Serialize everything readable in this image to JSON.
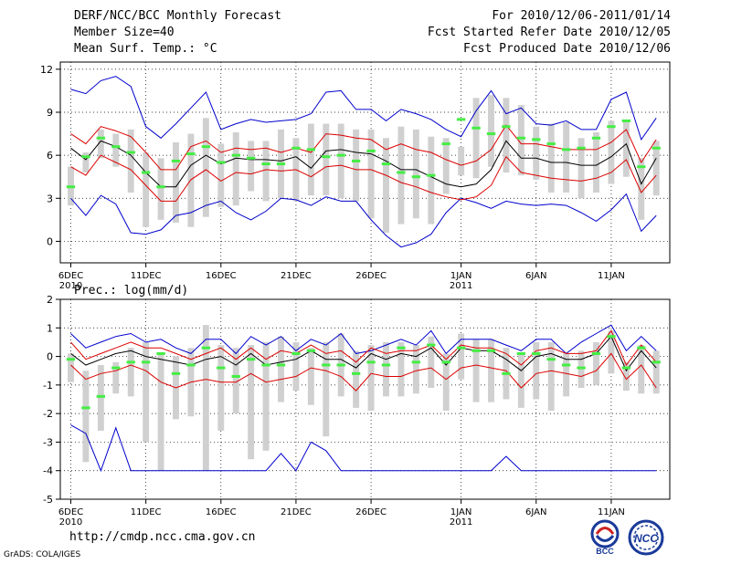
{
  "header": {
    "title": "DERF/NCC/BCC Monthly Forecast",
    "member_size": "Member Size=40",
    "variable": "Mean Surf. Temp.: °C",
    "period": "For 2010/12/06-2011/01/14",
    "started": "Fcst Started Refer Date 2010/12/05",
    "produced": "Fcst Produced Date 2010/12/06"
  },
  "footer": {
    "url": "http://cmdp.ncc.cma.gov.cn",
    "credit": "GrADS: COLA/IGES",
    "logo_bcc": "BCC",
    "logo_ncc": "NCC"
  },
  "colors": {
    "envelope": "#0000cc",
    "spread": "#dd0000",
    "mean": "#000000",
    "box": "#d0d0d0",
    "median": "#44ee44"
  },
  "chart_data": [
    {
      "type": "box",
      "title": "Mean Surf. Temp.: °C",
      "x": [
        1,
        2,
        3,
        4,
        5,
        6,
        7,
        8,
        9,
        10,
        11,
        12,
        13,
        14,
        15,
        16,
        17,
        18,
        19,
        20,
        21,
        22,
        23,
        24,
        25,
        26,
        27,
        28,
        29,
        30,
        31,
        32,
        33,
        34,
        35,
        36,
        37,
        38,
        39,
        40
      ],
      "xticks": [
        {
          "x": 1,
          "label": "6DEC",
          "sub": "2010"
        },
        {
          "x": 6,
          "label": "11DEC",
          "sub": ""
        },
        {
          "x": 11,
          "label": "16DEC",
          "sub": ""
        },
        {
          "x": 16,
          "label": "21DEC",
          "sub": ""
        },
        {
          "x": 21,
          "label": "26DEC",
          "sub": ""
        },
        {
          "x": 27,
          "label": "1JAN",
          "sub": "2011"
        },
        {
          "x": 32,
          "label": "6JAN",
          "sub": ""
        },
        {
          "x": 37,
          "label": "11JAN",
          "sub": ""
        }
      ],
      "yticks": [
        0,
        3,
        6,
        9,
        12
      ],
      "ylim": [
        -1.5,
        12.5
      ],
      "xlim": [
        0.3,
        40.9
      ],
      "max": [
        10.6,
        10.3,
        11.2,
        11.5,
        10.8,
        8,
        7.2,
        8.2,
        9.3,
        10.4,
        7.8,
        8.2,
        8.5,
        8.3,
        8.4,
        8.5,
        8.9,
        10.4,
        10.5,
        9.2,
        9.2,
        8.4,
        9.2,
        8.9,
        8.5,
        7.8,
        7.3,
        9.1,
        10.5,
        8.9,
        9.3,
        8.2,
        8.1,
        8.4,
        7.8,
        7.8,
        9.9,
        10.4,
        7.1,
        8.6
      ],
      "upper": [
        7.5,
        6.8,
        8,
        7.7,
        7.3,
        6.2,
        5,
        5,
        6.6,
        7,
        6.2,
        6.5,
        6.4,
        6.5,
        6.2,
        6.5,
        6.2,
        7.5,
        7.4,
        7.2,
        7.1,
        6.4,
        6.8,
        6.4,
        6.2,
        5.7,
        5.3,
        5.6,
        6.4,
        8.1,
        6.8,
        6.8,
        6.6,
        6.4,
        6.4,
        6.4,
        6.9,
        7.8,
        5.5,
        7.1
      ],
      "mean": [
        6.5,
        5.7,
        7,
        6.6,
        6,
        4.8,
        3.8,
        3.8,
        5.3,
        6,
        5.4,
        5.8,
        5.7,
        5.7,
        5.6,
        5.9,
        5.1,
        6.3,
        6.4,
        6.2,
        6.1,
        5.6,
        5,
        5,
        4.5,
        4,
        3.8,
        4,
        5,
        7,
        5.8,
        5.8,
        5.5,
        5.5,
        5.3,
        5.3,
        5.9,
        6.8,
        4,
        5.8
      ],
      "lower": [
        5.2,
        4.6,
        6,
        5.5,
        5,
        3.9,
        2.8,
        2.8,
        4.3,
        5,
        4.2,
        4.8,
        4.7,
        5,
        4.9,
        5,
        4.5,
        5.2,
        5.3,
        5,
        5,
        4.6,
        4.1,
        3.8,
        3.4,
        3.1,
        2.9,
        3.1,
        3.9,
        5.9,
        4.8,
        4.6,
        4.4,
        4.3,
        4.2,
        4.4,
        4.8,
        5.7,
        3.4,
        4.6
      ],
      "min": [
        3,
        1.8,
        3.2,
        2.6,
        0.6,
        0.5,
        0.8,
        1.8,
        2,
        2.5,
        2.8,
        2,
        1.5,
        2.1,
        3,
        2.9,
        2.5,
        3.1,
        2.8,
        2.8,
        1.5,
        0.4,
        -0.4,
        -0.1,
        0.5,
        2,
        3,
        2.7,
        2.3,
        2.8,
        2.6,
        2.5,
        2.6,
        2.5,
        2,
        1.4,
        2.2,
        3.3,
        0.7,
        1.8
      ],
      "box_top": [
        5.2,
        6.2,
        7.8,
        7.5,
        7.8,
        6.2,
        5.8,
        6.9,
        7.5,
        8.6,
        6.8,
        7.6,
        7,
        7,
        7.8,
        7.2,
        8.2,
        8.2,
        8.2,
        7.8,
        7.8,
        7.2,
        8,
        7.8,
        7.3,
        7.2,
        6.6,
        10,
        10.2,
        10,
        9.5,
        8,
        8.2,
        8.3,
        7.2,
        7.6,
        8.4,
        8.4,
        5.8,
        7
      ],
      "box_bottom": [
        2.5,
        4.8,
        5.8,
        5.2,
        3.4,
        1,
        1.5,
        1.3,
        1,
        1.7,
        2.4,
        2.5,
        3.5,
        2.8,
        3,
        2.8,
        3.2,
        3.2,
        3,
        2.8,
        1.6,
        0.6,
        1.2,
        1.6,
        1.2,
        3.3,
        4.6,
        4.4,
        5.2,
        4.8,
        4.6,
        4.3,
        3.4,
        3.4,
        3,
        3.4,
        4,
        4.5,
        1.5,
        3.2
      ],
      "median": [
        3.8,
        5.9,
        7.2,
        6.6,
        6.2,
        4.8,
        3.8,
        5.6,
        6.1,
        6.6,
        5.5,
        6,
        5.8,
        5.4,
        5.4,
        6.5,
        6.4,
        5.9,
        6,
        5.6,
        6.3,
        5.4,
        4.8,
        4.5,
        4.6,
        6.8,
        8.5,
        7.9,
        7.5,
        8,
        7.2,
        7.1,
        6.8,
        6.4,
        6.5,
        7.2,
        8,
        8.4,
        5.2,
        6.5
      ]
    },
    {
      "type": "box",
      "title": "Prec.: log(mm/d)",
      "x": [
        1,
        2,
        3,
        4,
        5,
        6,
        7,
        8,
        9,
        10,
        11,
        12,
        13,
        14,
        15,
        16,
        17,
        18,
        19,
        20,
        21,
        22,
        23,
        24,
        25,
        26,
        27,
        28,
        29,
        30,
        31,
        32,
        33,
        34,
        35,
        36,
        37,
        38,
        39,
        40
      ],
      "xticks": [
        {
          "x": 1,
          "label": "6DEC",
          "sub": "2010"
        },
        {
          "x": 6,
          "label": "11DEC",
          "sub": ""
        },
        {
          "x": 11,
          "label": "16DEC",
          "sub": ""
        },
        {
          "x": 16,
          "label": "21DEC",
          "sub": ""
        },
        {
          "x": 21,
          "label": "26DEC",
          "sub": ""
        },
        {
          "x": 27,
          "label": "1JAN",
          "sub": "2011"
        },
        {
          "x": 32,
          "label": "6JAN",
          "sub": ""
        },
        {
          "x": 37,
          "label": "11JAN",
          "sub": ""
        }
      ],
      "yticks": [
        -5,
        -4,
        -3,
        -2,
        -1,
        0,
        1,
        2
      ],
      "ylim": [
        -5,
        2
      ],
      "xlim": [
        0.3,
        40.9
      ],
      "max": [
        0.8,
        0.3,
        0.5,
        0.7,
        0.8,
        0.5,
        0.6,
        0.3,
        0.1,
        0.6,
        0.6,
        0.1,
        0.7,
        0.4,
        0.7,
        0.2,
        0.6,
        0.4,
        0.8,
        0.1,
        0.2,
        0.4,
        0.6,
        0.4,
        0.9,
        0.1,
        0.6,
        0.6,
        0.6,
        0.4,
        0.2,
        0.6,
        0.6,
        0.1,
        0.5,
        0.8,
        1.1,
        0.2,
        0.7,
        0.2
      ],
      "upper": [
        0.5,
        -0.1,
        0.1,
        0.3,
        0.5,
        0.3,
        0.3,
        0.1,
        -0.1,
        0.1,
        0.3,
        -0.1,
        0.3,
        -0.1,
        0.2,
        0.1,
        0.4,
        0.1,
        0.2,
        -0.2,
        0.3,
        0.1,
        0.2,
        0.2,
        0.4,
        -0.1,
        0.4,
        0.3,
        0.3,
        0.1,
        -0.3,
        0.2,
        0.3,
        0.1,
        0.1,
        0.2,
        0.9,
        -0.3,
        0.4,
        -0.2
      ],
      "mean": [
        0.1,
        -0.3,
        -0.1,
        0.1,
        0.2,
        0,
        -0.1,
        -0.2,
        -0.3,
        -0.1,
        0,
        -0.3,
        0.1,
        -0.3,
        -0.2,
        -0.1,
        0.2,
        -0.1,
        -0.1,
        -0.4,
        0.1,
        -0.1,
        0.1,
        0,
        0.3,
        -0.3,
        0.3,
        0.2,
        0.2,
        -0.1,
        -0.5,
        0,
        0.1,
        -0.1,
        -0.1,
        0.1,
        0.7,
        -0.5,
        0.2,
        -0.4
      ],
      "lower": [
        -0.3,
        -0.8,
        -0.6,
        -0.5,
        -0.3,
        -0.5,
        -0.9,
        -1.1,
        -0.9,
        -0.8,
        -0.9,
        -0.9,
        -0.6,
        -0.9,
        -0.8,
        -0.7,
        -0.4,
        -0.5,
        -0.7,
        -1.2,
        -0.6,
        -0.7,
        -0.7,
        -0.5,
        -0.4,
        -0.8,
        -0.4,
        -0.3,
        -0.4,
        -0.5,
        -1.1,
        -0.6,
        -0.5,
        -0.6,
        -0.7,
        -0.5,
        0.1,
        -0.8,
        -0.3,
        -1.1
      ],
      "min": [
        -2.4,
        -2.7,
        -4,
        -2.5,
        -4,
        -4,
        -4,
        -4,
        -4,
        -4,
        -4,
        -4,
        -4,
        -4,
        -3.4,
        -4,
        -3,
        -3.3,
        -4,
        -4,
        -4,
        -4,
        -4,
        -4,
        -4,
        -4,
        -4,
        -4,
        -4,
        -3.5,
        -4,
        -4,
        -4,
        -4,
        -4,
        -4,
        -4,
        -4,
        -4,
        -4
      ],
      "box_top": [
        0.1,
        -0.5,
        -0.3,
        -0.2,
        0.3,
        0.5,
        0.1,
        0,
        0.3,
        1.1,
        0.4,
        0.3,
        0.4,
        0.5,
        0.7,
        0.5,
        0.3,
        0.5,
        0.8,
        0.2,
        0.4,
        0.5,
        0.5,
        0.4,
        0.7,
        0.1,
        0.8,
        0.6,
        0.6,
        0.3,
        0.1,
        0.5,
        0.5,
        0.1,
        0.2,
        0.5,
        0.9,
        -0.2,
        0.4,
        0.2
      ],
      "box_bottom": [
        -0.9,
        -3.7,
        -2.6,
        -1.3,
        -1.4,
        -3,
        -4,
        -2.2,
        -2.1,
        -4,
        -2.6,
        -2,
        -3.6,
        -3.3,
        -1.6,
        -1.2,
        -1.7,
        -2.8,
        -1.4,
        -1.8,
        -1.9,
        -1.4,
        -1.4,
        -1.3,
        -1.1,
        -1.9,
        -0.8,
        -1.6,
        -1.6,
        -1.5,
        -1.8,
        -1.5,
        -1.9,
        -1.4,
        -1.1,
        -1,
        -0.6,
        -1.2,
        -1.3,
        -1.3
      ],
      "median": [
        -0.1,
        -1.8,
        -1.4,
        -0.4,
        -0.2,
        -0.2,
        0.1,
        -0.6,
        -0.3,
        0.3,
        -0.4,
        -0.7,
        -0.1,
        -0.3,
        -0.3,
        0.1,
        0.2,
        -0.3,
        -0.3,
        -0.6,
        -0.2,
        -0.3,
        0.3,
        -0.2,
        0.4,
        -0.2,
        0.3,
        0.2,
        0.2,
        -0.6,
        0.1,
        0.1,
        -0.1,
        -0.3,
        -0.4,
        0.1,
        0.7,
        -0.4,
        0.3,
        -0.2
      ]
    }
  ]
}
